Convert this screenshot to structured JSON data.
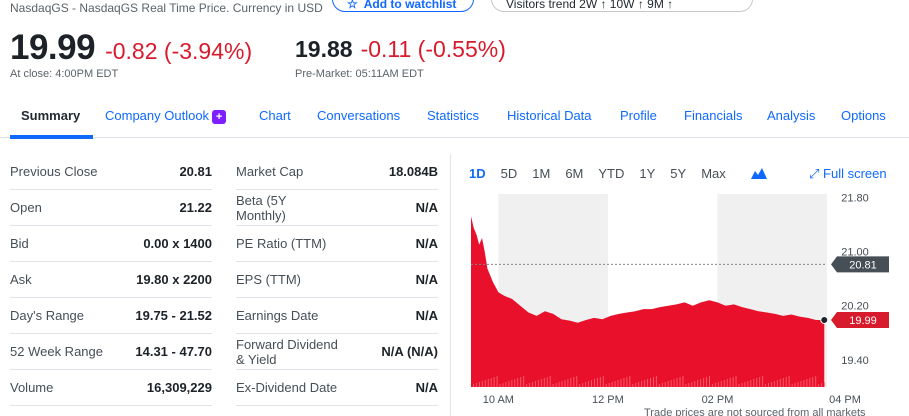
{
  "header": {
    "source": "NasdaqGS - NasdaqGS Real Time Price. Currency in USD",
    "watchlist_button": "Add to watchlist",
    "visitors_button": "Visitors trend 2W ↑ 10W ↑ 9M ↑"
  },
  "quote": {
    "price": "19.99",
    "change": "-0.82 (-3.94%)",
    "close_label": "At close: 4:00PM EDT",
    "pre_price": "19.88",
    "pre_change": "-0.11 (-0.55%)",
    "pre_label": "Pre-Market: 05:11AM EDT"
  },
  "tabs": [
    {
      "label": "Summary"
    },
    {
      "label": "Company Outlook"
    },
    {
      "label": "Chart"
    },
    {
      "label": "Conversations"
    },
    {
      "label": "Statistics"
    },
    {
      "label": "Historical Data"
    },
    {
      "label": "Profile"
    },
    {
      "label": "Financials"
    },
    {
      "label": "Analysis"
    },
    {
      "label": "Options"
    }
  ],
  "stats_left": [
    {
      "label": "Previous Close",
      "value": "20.81"
    },
    {
      "label": "Open",
      "value": "21.22"
    },
    {
      "label": "Bid",
      "value": "0.00 x 1400"
    },
    {
      "label": "Ask",
      "value": "19.80 x 2200"
    },
    {
      "label": "Day's Range",
      "value": "19.75 - 21.52"
    },
    {
      "label": "52 Week Range",
      "value": "14.31 - 47.70"
    },
    {
      "label": "Volume",
      "value": "16,309,229"
    }
  ],
  "stats_right": [
    {
      "label": "Market Cap",
      "value": "18.084B"
    },
    {
      "label": "Beta (5Y Monthly)",
      "value": "N/A"
    },
    {
      "label": "PE Ratio (TTM)",
      "value": "N/A"
    },
    {
      "label": "EPS (TTM)",
      "value": "N/A"
    },
    {
      "label": "Earnings Date",
      "value": "N/A"
    },
    {
      "label": "Forward Dividend & Yield",
      "value": "N/A (N/A)"
    },
    {
      "label": "Ex-Dividend Date",
      "value": "N/A"
    }
  ],
  "chart_controls": {
    "ranges": [
      "1D",
      "5D",
      "1M",
      "6M",
      "YTD",
      "1Y",
      "5Y",
      "Max"
    ],
    "active_range": "1D",
    "fullscreen_label": "Full screen"
  },
  "chart_footnote": "Trade prices are not sourced from all markets",
  "colors": {
    "accent": "#0f69ff",
    "negative": "#d81b2c",
    "chart_fill": "#e8102a",
    "prev_close_badge": "#464e56"
  },
  "chart_data": {
    "type": "area",
    "y_ticks": [
      "21.80",
      "21.00",
      "20.20",
      "19.40"
    ],
    "ylim": [
      19.0,
      21.85
    ],
    "x_ticks": [
      "10 AM",
      "12 PM",
      "02 PM",
      "04 PM"
    ],
    "x_tick_times": [
      10,
      12,
      14,
      16
    ],
    "xlim": [
      9.5,
      16
    ],
    "prev_close": {
      "value": 20.81,
      "label": "20.81"
    },
    "last": {
      "value": 19.99,
      "label": "19.99"
    },
    "series": [
      {
        "x": [
          9.5,
          9.55,
          9.6,
          9.65,
          9.7,
          9.75,
          9.8,
          9.9,
          10.0,
          10.1,
          10.25,
          10.4,
          10.55,
          10.7,
          10.85,
          11.0,
          11.15,
          11.3,
          11.45,
          11.6,
          11.75,
          11.9,
          12.05,
          12.2,
          12.35,
          12.5,
          12.65,
          12.8,
          12.95,
          13.1,
          13.25,
          13.4,
          13.55,
          13.7,
          13.85,
          14.0,
          14.15,
          14.3,
          14.45,
          14.6,
          14.75,
          14.9,
          15.05,
          15.2,
          15.35,
          15.5,
          15.65,
          15.8,
          15.95
        ],
        "values": [
          21.52,
          21.35,
          21.25,
          21.1,
          21.2,
          21.0,
          20.75,
          20.55,
          20.4,
          20.35,
          20.3,
          20.2,
          20.1,
          20.05,
          20.12,
          20.08,
          20.0,
          19.98,
          19.95,
          19.99,
          20.02,
          20.0,
          20.05,
          20.08,
          20.1,
          20.12,
          20.15,
          20.15,
          20.18,
          20.2,
          20.22,
          20.25,
          20.2,
          20.25,
          20.28,
          20.25,
          20.2,
          20.22,
          20.18,
          20.15,
          20.12,
          20.1,
          20.08,
          20.05,
          20.07,
          20.04,
          20.02,
          19.99,
          19.99
        ]
      }
    ],
    "shaded_hours": [
      [
        10,
        12
      ],
      [
        14,
        16
      ]
    ]
  }
}
